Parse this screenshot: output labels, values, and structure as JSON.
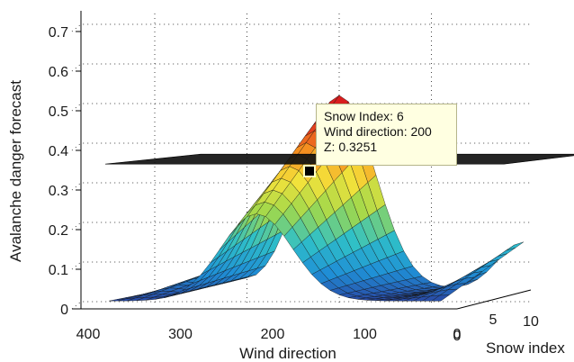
{
  "chart_data": {
    "type": "surface",
    "ylabel": "Avalanche danger forecast",
    "xlabel": "Wind direction",
    "zlabel": "Snow index",
    "y_ticks": [
      "0",
      "0.1",
      "0.2",
      "0.3",
      "0.4",
      "0.5",
      "0.6",
      "0.7"
    ],
    "x_ticks": [
      "400",
      "300",
      "200",
      "100",
      "0"
    ],
    "z_ticks": [
      "0",
      "5",
      "10"
    ],
    "ylim": [
      0,
      0.75
    ],
    "wind_direction_range": [
      0,
      360
    ],
    "snow_index_range": [
      0,
      10
    ],
    "threshold_plane": 0.37,
    "peak": {
      "wind_direction": 200,
      "snow_index": 10,
      "value": 0.49
    },
    "colormap": [
      "#2b3f9e",
      "#1f8fd6",
      "#2fc0c8",
      "#9fd84c",
      "#f5e23a",
      "#f58a1f",
      "#d81e1e"
    ],
    "grid": "dotted",
    "datatip": {
      "line1": "Snow Index: 6",
      "line2": "Wind direction: 200",
      "line3": "Z: 0.3251"
    }
  }
}
